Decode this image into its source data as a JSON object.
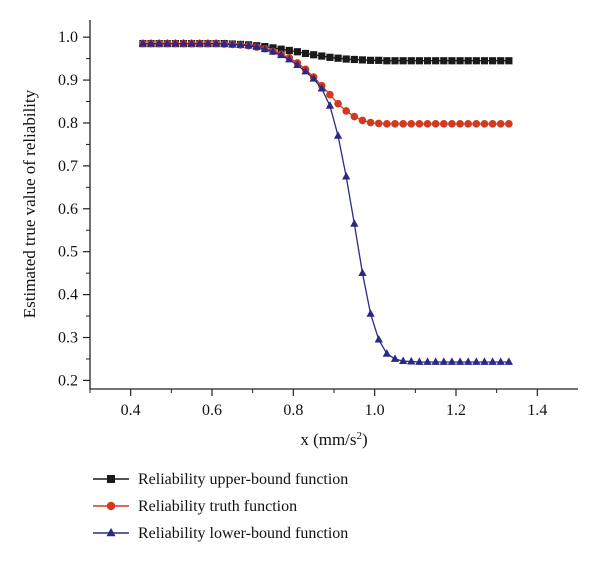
{
  "chart_data": {
    "type": "line",
    "title": "",
    "xlabel": "x (mm/s",
    "xlabel_sup": "2",
    "xlabel_close": ")",
    "ylabel": "Estimated true value of reliability",
    "xlim": [
      0.3,
      1.5
    ],
    "ylim": [
      0.18,
      1.04
    ],
    "xticks": [
      "0.4",
      "0.6",
      "0.8",
      "1.0",
      "1.2",
      "1.4"
    ],
    "xtick_values": [
      0.4,
      0.6,
      0.8,
      1.0,
      1.2,
      1.4
    ],
    "yticks": [
      "0.2",
      "0.3",
      "0.4",
      "0.5",
      "0.6",
      "0.7",
      "0.8",
      "0.9",
      "1.0"
    ],
    "ytick_values": [
      0.2,
      0.3,
      0.4,
      0.5,
      0.6,
      0.7,
      0.8,
      0.9,
      1.0
    ],
    "grid": false,
    "legend_position": "bottom",
    "x": [
      0.43,
      0.45,
      0.47,
      0.49,
      0.51,
      0.53,
      0.55,
      0.57,
      0.59,
      0.61,
      0.63,
      0.65,
      0.67,
      0.69,
      0.71,
      0.73,
      0.75,
      0.77,
      0.79,
      0.81,
      0.83,
      0.85,
      0.87,
      0.89,
      0.91,
      0.93,
      0.95,
      0.97,
      0.99,
      1.01,
      1.03,
      1.05,
      1.07,
      1.09,
      1.11,
      1.13,
      1.15,
      1.17,
      1.19,
      1.21,
      1.23,
      1.25,
      1.27,
      1.29,
      1.31,
      1.33
    ],
    "series": [
      {
        "name": "Reliability upper-bound function",
        "color": "#1a1a1a",
        "marker": "square",
        "values": [
          0.985,
          0.985,
          0.985,
          0.985,
          0.985,
          0.985,
          0.985,
          0.985,
          0.985,
          0.985,
          0.985,
          0.984,
          0.983,
          0.982,
          0.98,
          0.978,
          0.975,
          0.972,
          0.969,
          0.966,
          0.962,
          0.959,
          0.956,
          0.953,
          0.951,
          0.949,
          0.948,
          0.947,
          0.946,
          0.946,
          0.945,
          0.945,
          0.945,
          0.945,
          0.945,
          0.945,
          0.945,
          0.945,
          0.945,
          0.945,
          0.945,
          0.945,
          0.945,
          0.945,
          0.945,
          0.945
        ]
      },
      {
        "name": "Reliability truth function",
        "color": "#d23a1f",
        "marker": "circle",
        "values": [
          0.985,
          0.985,
          0.985,
          0.985,
          0.985,
          0.985,
          0.985,
          0.985,
          0.985,
          0.985,
          0.984,
          0.983,
          0.982,
          0.98,
          0.977,
          0.973,
          0.967,
          0.96,
          0.952,
          0.94,
          0.925,
          0.907,
          0.887,
          0.866,
          0.845,
          0.828,
          0.815,
          0.806,
          0.801,
          0.799,
          0.798,
          0.798,
          0.798,
          0.798,
          0.798,
          0.798,
          0.798,
          0.798,
          0.798,
          0.798,
          0.798,
          0.798,
          0.798,
          0.798,
          0.798,
          0.798
        ]
      },
      {
        "name": "Reliability lower-bound function",
        "color": "#2a2a86",
        "marker": "triangle",
        "values": [
          0.985,
          0.985,
          0.985,
          0.985,
          0.985,
          0.985,
          0.985,
          0.985,
          0.985,
          0.985,
          0.984,
          0.983,
          0.982,
          0.98,
          0.977,
          0.972,
          0.966,
          0.958,
          0.948,
          0.935,
          0.92,
          0.903,
          0.88,
          0.84,
          0.77,
          0.675,
          0.565,
          0.45,
          0.355,
          0.295,
          0.262,
          0.25,
          0.245,
          0.244,
          0.243,
          0.243,
          0.243,
          0.243,
          0.243,
          0.243,
          0.243,
          0.243,
          0.243,
          0.243,
          0.243,
          0.243
        ]
      }
    ]
  }
}
